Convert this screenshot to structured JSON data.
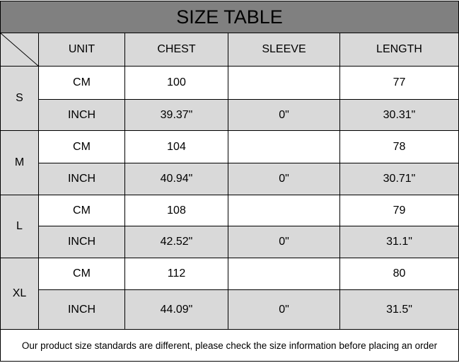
{
  "title": "SIZE TABLE",
  "colors": {
    "title_bg": "#808080",
    "shade": "#d9d9d9",
    "grid": "#000000"
  },
  "headers": [
    "UNIT",
    "CHEST",
    "SLEEVE",
    "LENGTH"
  ],
  "sizes": [
    {
      "size": "S",
      "rows": [
        {
          "unit": "CM",
          "chest": "100",
          "sleeve": "",
          "length": "77"
        },
        {
          "unit": "INCH",
          "chest": "39.37\"",
          "sleeve": "0\"",
          "length": "30.31\""
        }
      ]
    },
    {
      "size": "M",
      "rows": [
        {
          "unit": "CM",
          "chest": "104",
          "sleeve": "",
          "length": "78"
        },
        {
          "unit": "INCH",
          "chest": "40.94\"",
          "sleeve": "0\"",
          "length": "30.71\""
        }
      ]
    },
    {
      "size": "L",
      "rows": [
        {
          "unit": "CM",
          "chest": "108",
          "sleeve": "",
          "length": "79"
        },
        {
          "unit": "INCH",
          "chest": "42.52\"",
          "sleeve": "0\"",
          "length": "31.1\""
        }
      ]
    },
    {
      "size": "XL",
      "rows": [
        {
          "unit": "CM",
          "chest": "112",
          "sleeve": "",
          "length": "80"
        },
        {
          "unit": "INCH",
          "chest": "44.09\"",
          "sleeve": "0\"",
          "length": "31.5\""
        }
      ]
    }
  ],
  "footer": "Our product size standards are different, please check the size information before placing an order"
}
